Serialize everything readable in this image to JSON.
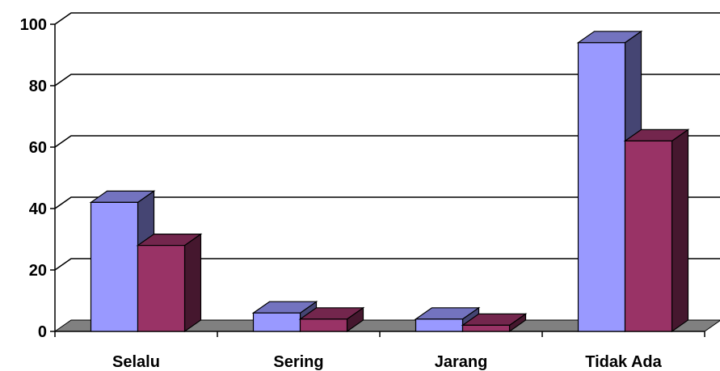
{
  "chart_data": {
    "type": "bar",
    "categories": [
      "Selalu",
      "Sering",
      "Jarang",
      "Tidak Ada"
    ],
    "series": [
      {
        "values": [
          42,
          6,
          4,
          94
        ],
        "color": "#9999ff"
      },
      {
        "values": [
          28,
          4,
          2,
          62
        ],
        "color": "#993366"
      }
    ],
    "ylim": [
      0,
      100
    ],
    "yticks": [
      0,
      20,
      40,
      60,
      80,
      100
    ],
    "grid": true,
    "bar_style": "3d",
    "background_color": "#ffffff",
    "floor_color": "#808080"
  }
}
